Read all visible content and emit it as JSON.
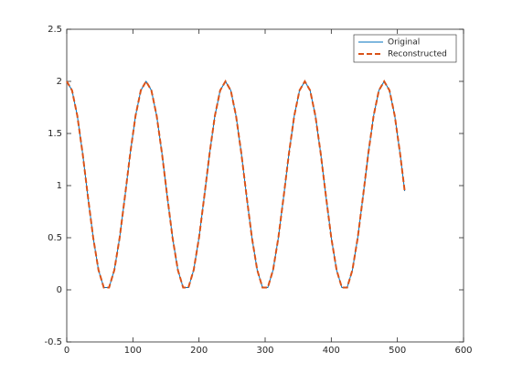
{
  "chart_data": {
    "type": "line",
    "x": [
      0,
      8,
      16,
      24,
      32,
      40,
      48,
      56,
      64,
      72,
      80,
      88,
      96,
      104,
      112,
      120,
      128,
      136,
      144,
      152,
      160,
      168,
      176,
      184,
      192,
      200,
      208,
      216,
      224,
      232,
      240,
      248,
      256,
      264,
      272,
      280,
      288,
      296,
      304,
      312,
      320,
      328,
      336,
      344,
      352,
      360,
      368,
      376,
      384,
      392,
      400,
      408,
      416,
      424,
      432,
      440,
      448,
      456,
      464,
      472,
      480,
      488,
      496,
      504,
      511
    ],
    "series": [
      {
        "name": "Original",
        "color": "#0072bd",
        "dash": false,
        "values": [
          2,
          1.9135,
          1.6691,
          1.309,
          0.8955,
          0.5,
          0.191,
          0.0219,
          0.0219,
          0.191,
          0.5,
          0.8955,
          1.309,
          1.6691,
          1.9135,
          2,
          1.9135,
          1.6691,
          1.309,
          0.8955,
          0.5,
          0.191,
          0.0219,
          0.0219,
          0.191,
          0.5,
          0.8955,
          1.309,
          1.6691,
          1.9135,
          2,
          1.9135,
          1.6691,
          1.309,
          0.8955,
          0.5,
          0.191,
          0.0219,
          0.0219,
          0.191,
          0.5,
          0.8955,
          1.309,
          1.6691,
          1.9135,
          2,
          1.9135,
          1.6691,
          1.309,
          0.8955,
          0.5,
          0.191,
          0.0219,
          0.0219,
          0.191,
          0.5,
          0.8955,
          1.309,
          1.6691,
          1.9135,
          2,
          1.9135,
          1.6691,
          1.309,
          0.948
        ]
      },
      {
        "name": "Reconstructed",
        "color": "#d95319",
        "dash": true,
        "values": [
          2,
          1.9135,
          1.6691,
          1.309,
          0.8955,
          0.5,
          0.191,
          0.0219,
          0.0219,
          0.191,
          0.5,
          0.8955,
          1.309,
          1.6691,
          1.9135,
          2,
          1.9135,
          1.6691,
          1.309,
          0.8955,
          0.5,
          0.191,
          0.0219,
          0.0219,
          0.191,
          0.5,
          0.8955,
          1.309,
          1.6691,
          1.9135,
          2,
          1.9135,
          1.6691,
          1.309,
          0.8955,
          0.5,
          0.191,
          0.0219,
          0.0219,
          0.191,
          0.5,
          0.8955,
          1.309,
          1.6691,
          1.9135,
          2,
          1.9135,
          1.6691,
          1.309,
          0.8955,
          0.5,
          0.191,
          0.0219,
          0.0219,
          0.191,
          0.5,
          0.8955,
          1.309,
          1.6691,
          1.9135,
          2,
          1.9135,
          1.6691,
          1.309,
          0.948
        ]
      }
    ],
    "xlim": [
      0,
      600
    ],
    "xticks": [
      0,
      100,
      200,
      300,
      400,
      500,
      600
    ],
    "ylim": [
      -0.5,
      2.5
    ],
    "yticks": [
      -0.5,
      0,
      0.5,
      1,
      1.5,
      2,
      2.5
    ],
    "legend": "upper-right"
  }
}
